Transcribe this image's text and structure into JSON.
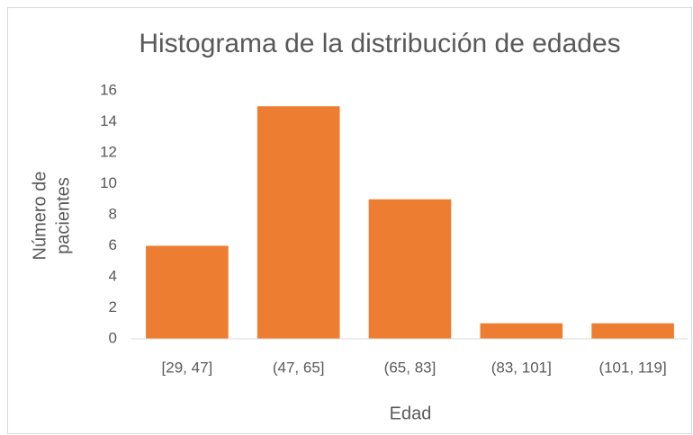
{
  "chart_data": {
    "type": "bar",
    "title": "Histograma de la distribución de edades",
    "categories": [
      "[29, 47]",
      "(47, 65]",
      "(65, 83]",
      "(83, 101]",
      "(101, 119]"
    ],
    "values": [
      6,
      15,
      9,
      1,
      1
    ],
    "color": "#ed7d31",
    "xlabel": "Edad",
    "ylabel": [
      "Número de",
      "pacientes"
    ],
    "ylim": [
      0,
      16
    ],
    "yticks": [
      0,
      2,
      4,
      6,
      8,
      10,
      12,
      14,
      16
    ],
    "grid": false
  }
}
